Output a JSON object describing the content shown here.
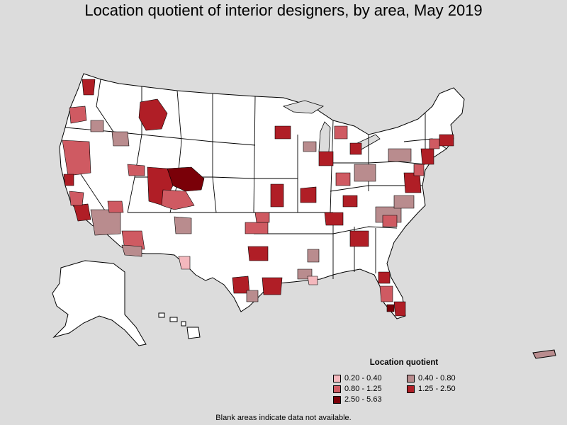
{
  "title": "Location quotient of interior designers, by area, May 2019",
  "legend": {
    "title": "Location quotient",
    "items": [
      {
        "label": "0.20 - 0.40",
        "color": "#f4b8bd"
      },
      {
        "label": "0.40 - 0.80",
        "color": "#b98c8e"
      },
      {
        "label": "0.80 - 1.25",
        "color": "#cf5a62"
      },
      {
        "label": "1.25 - 2.50",
        "color": "#b01e26"
      },
      {
        "label": "2.50 - 5.63",
        "color": "#7a0008"
      }
    ]
  },
  "footnote": "Blank areas indicate data not available.",
  "colors": {
    "background": "#dcdcdc",
    "no_data": "#ffffff",
    "border": "#000000"
  }
}
